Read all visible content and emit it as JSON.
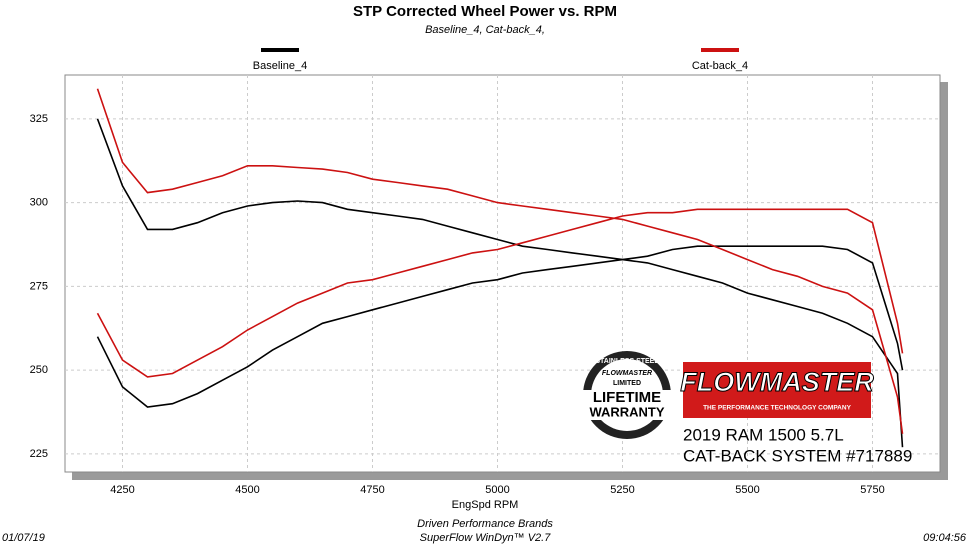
{
  "chart_data": {
    "type": "line",
    "title": "STP Corrected Wheel Power vs. RPM",
    "subtitle": "Baseline_4, Cat-back_4,",
    "x_label": "EngSpd  RPM",
    "footer": {
      "date": "01/07/19",
      "company": "Driven Performance Brands",
      "software": "SuperFlow WinDyn™  V2.7",
      "time": "09:04:56"
    },
    "logo": {
      "badge_top": "STAINLESS STEEL",
      "badge_brand": "FLOWMASTER",
      "badge_limited": "LIMITED",
      "badge_lifetime": "LIFETIME",
      "badge_warranty": "WARRANTY",
      "brand": "FLOWMASTER",
      "tagline": "THE PERFORMANCE TECHNOLOGY COMPANY",
      "vehicle": "2019 RAM 1500 5.7L",
      "system": "CAT-BACK SYSTEM #717889"
    },
    "x": [
      4200,
      4250,
      4300,
      4350,
      4400,
      4450,
      4500,
      4550,
      4600,
      4650,
      4700,
      4750,
      4800,
      4850,
      4900,
      4950,
      5000,
      5050,
      5100,
      5150,
      5200,
      5250,
      5300,
      5350,
      5400,
      5450,
      5500,
      5550,
      5600,
      5650,
      5700,
      5750,
      5800,
      5810
    ],
    "series": [
      {
        "name": "Baseline_4",
        "color": "#000000",
        "lines": [
          [
            325,
            305,
            292,
            292,
            294,
            297,
            299,
            300,
            300.5,
            300,
            298,
            297,
            296,
            295,
            293,
            291,
            289,
            287,
            286,
            285,
            284,
            283,
            282,
            280,
            278,
            276,
            273,
            271,
            269,
            267,
            264,
            260,
            249,
            227
          ],
          [
            260,
            245,
            239,
            240,
            243,
            247,
            251,
            256,
            260,
            264,
            266,
            268,
            270,
            272,
            274,
            276,
            277,
            279,
            280,
            281,
            282,
            283,
            284,
            286,
            287,
            287,
            287,
            287,
            287,
            287,
            286,
            282,
            258,
            250
          ]
        ]
      },
      {
        "name": "Cat-back_4",
        "color": "#cc1111",
        "lines": [
          [
            334,
            312,
            303,
            304,
            306,
            308,
            311,
            311,
            310.5,
            310,
            309,
            307,
            306,
            305,
            304,
            302,
            300,
            299,
            298,
            297,
            296,
            295,
            293,
            291,
            289,
            286,
            283,
            280,
            278,
            275,
            273,
            268,
            242,
            231
          ],
          [
            267,
            253,
            248,
            249,
            253,
            257,
            262,
            266,
            270,
            273,
            276,
            277,
            279,
            281,
            283,
            285,
            286,
            288,
            290,
            292,
            294,
            296,
            297,
            297,
            298,
            298,
            298,
            298,
            298,
            298,
            298,
            294,
            264,
            255
          ]
        ]
      }
    ],
    "xlim": [
      4135,
      5885
    ],
    "xticks": [
      4250,
      4500,
      4750,
      5000,
      5250,
      5500,
      5750
    ],
    "ylim": [
      219.6,
      338.1
    ],
    "yticks": [
      225,
      250,
      275,
      300,
      325
    ],
    "grid": true
  }
}
